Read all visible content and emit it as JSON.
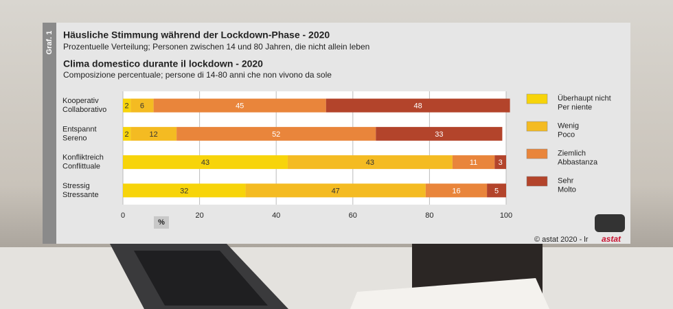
{
  "chart_data": {
    "type": "stacked-bar-horizontal",
    "side_label": "Graf. 1",
    "title": "Häusliche Stimmung während der Lockdown-Phase - 2020",
    "subtitle": "Prozentuelle Verteilung; Personen zwischen 14 und 80 Jahren, die nicht allein leben",
    "title_2": "Clima domestico durante il lockdown - 2020",
    "subtitle_2": "Composizione percentuale; persone di 14-80 anni che non vivono da sole",
    "categories": [
      "Kooperativ\nCollaborativo",
      "Entspannt\nSereno",
      "Konfliktreich\nConflittuale",
      "Stressig\nStressante"
    ],
    "series": [
      {
        "name": "Überhaupt nicht\nPer niente",
        "color": "#f7d40a",
        "label_color": "#333333",
        "values": [
          2,
          2,
          43,
          32
        ]
      },
      {
        "name": "Wenig\nPoco",
        "color": "#f4bb22",
        "label_color": "#333333",
        "values": [
          6,
          12,
          43,
          47
        ]
      },
      {
        "name": "Ziemlich\nAbbastanza",
        "color": "#e9853b",
        "label_color": "#ffffff",
        "values": [
          45,
          52,
          11,
          16
        ]
      },
      {
        "name": "Sehr\nMolto",
        "color": "#b3442b",
        "label_color": "#ffffff",
        "values": [
          48,
          33,
          3,
          5
        ]
      }
    ],
    "xlim": [
      0,
      100
    ],
    "xticks": [
      0,
      20,
      40,
      60,
      80,
      100
    ],
    "x_unit": "%",
    "grid": true,
    "legend": "right",
    "credit": "© astat 2020 - lr",
    "logo": "astat"
  }
}
